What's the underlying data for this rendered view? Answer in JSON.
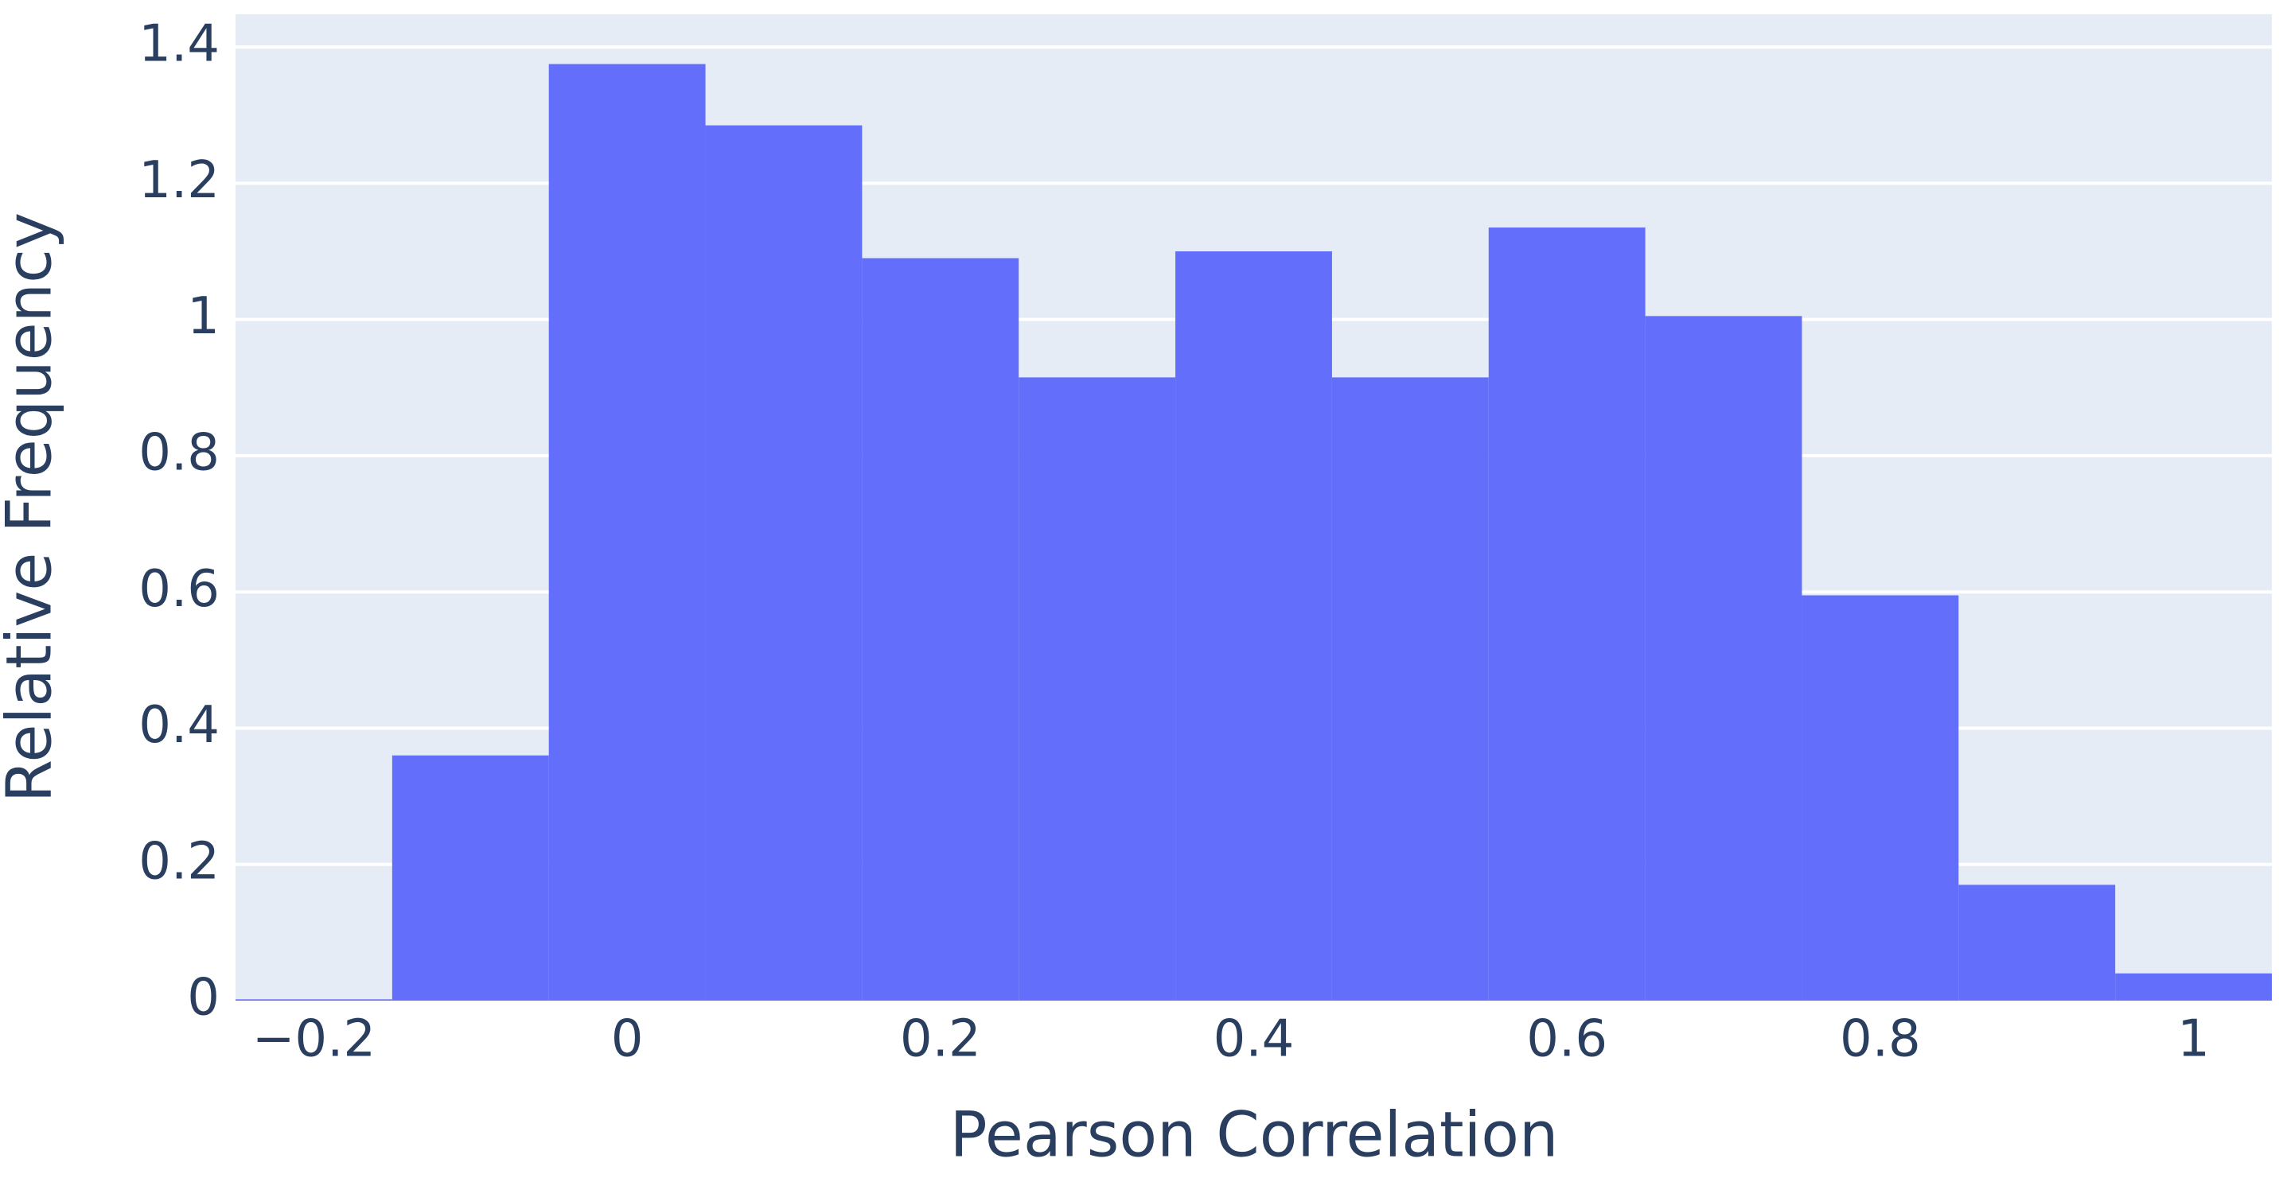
{
  "chart_data": {
    "type": "histogram",
    "x_label": "Pearson Correlation",
    "y_label": "Relative Frequency",
    "bins": [
      -0.25,
      -0.15,
      -0.05,
      0.05,
      0.15,
      0.25,
      0.35,
      0.45,
      0.55,
      0.65,
      0.75,
      0.85,
      0.95,
      1.05
    ],
    "values": [
      0.002,
      0.36,
      1.375,
      1.285,
      1.09,
      0.915,
      1.1,
      0.915,
      1.135,
      1.005,
      0.595,
      0.17,
      0.04
    ],
    "color": "#636efa",
    "xlim": [
      -0.25,
      1.05
    ],
    "xticks": [
      {
        "value": -0.2,
        "label": "−0.2"
      },
      0,
      0.2,
      0.4,
      0.6,
      0.8,
      1
    ],
    "ylim": [
      0,
      1.448
    ],
    "yticks": [
      0,
      0.2,
      0.4,
      0.6,
      0.8,
      1,
      1.2,
      1.4
    ],
    "grid": true
  }
}
